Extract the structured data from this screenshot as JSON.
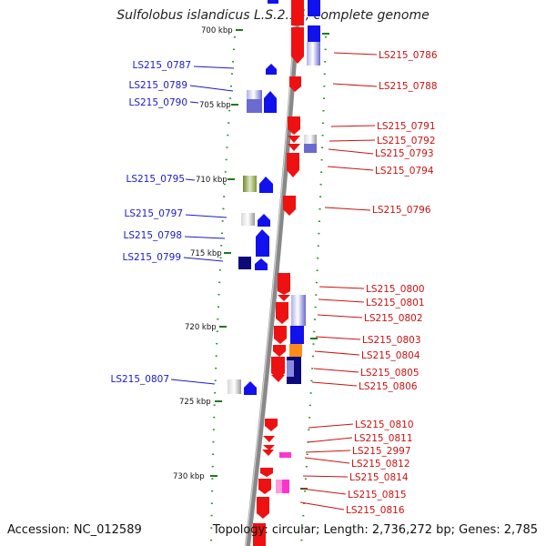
{
  "title": "Sulfolobus islandicus L.S.2.15, complete genome",
  "footer": {
    "accession": "Accession: NC_012589",
    "topology": "Topology: circular; Length: 2,736,272 bp; Genes: 2,785"
  },
  "kbp_ticks": [
    "700 kbp",
    "705 kbp",
    "710 kbp",
    "715 kbp",
    "720 kbp",
    "725 kbp",
    "730 kbp"
  ],
  "genes_reverse_strand": [
    "LS215_0787",
    "LS215_0789",
    "LS215_0790",
    "LS215_0795",
    "LS215_0797",
    "LS215_0798",
    "LS215_0799",
    "LS215_0807"
  ],
  "genes_forward_strand": [
    "LS215_0786",
    "LS215_0788",
    "LS215_0791",
    "LS215_0792",
    "LS215_0793",
    "LS215_0794",
    "LS215_0796",
    "LS215_0800",
    "LS215_0801",
    "LS215_0802",
    "LS215_0803",
    "LS215_0804",
    "LS215_0805",
    "LS215_0806",
    "LS215_0810",
    "LS215_0811",
    "LS215_2997",
    "LS215_0812",
    "LS215_0814",
    "LS215_0815",
    "LS215_0816"
  ],
  "colors": {
    "reverse_label": "#1a1acc",
    "forward_label": "#cc1111",
    "forward_gene": "#ee1111",
    "reverse_gene": "#1111ee",
    "tick": "#1e7a1e",
    "backbone": "#888888"
  }
}
